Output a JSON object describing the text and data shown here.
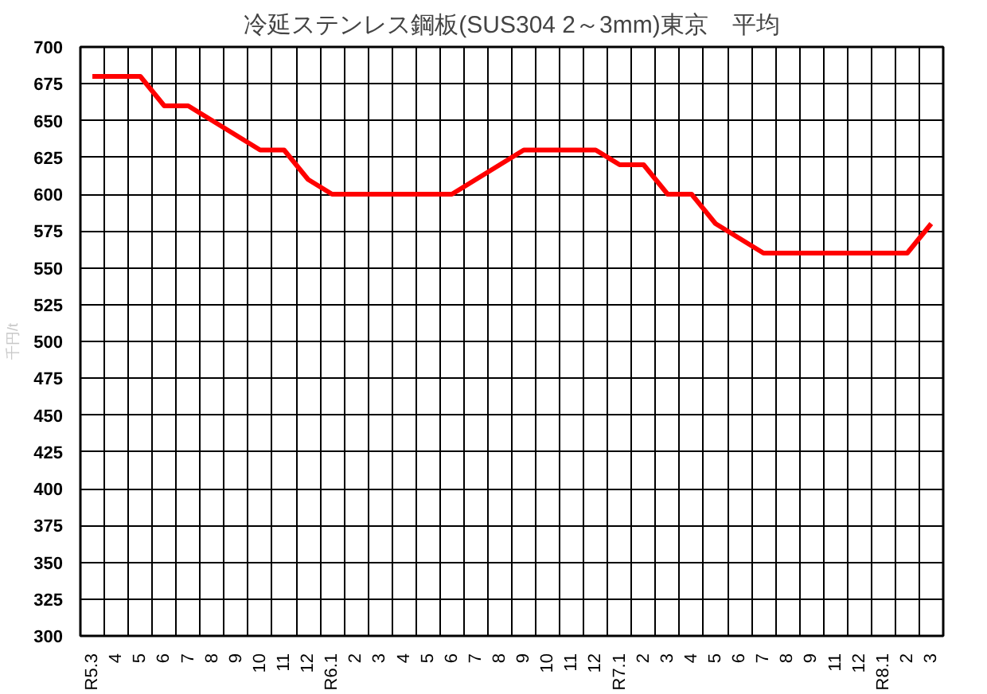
{
  "chart_data": {
    "type": "line",
    "title": "冷延ステンレス鋼板(SUS304 2～3mm)東京　平均",
    "ylabel": "千円/t",
    "categories": [
      "R5.3",
      "4",
      "5",
      "6",
      "7",
      "8",
      "9",
      "10",
      "11",
      "12",
      "R6.1",
      "2",
      "3",
      "4",
      "5",
      "6",
      "7",
      "8",
      "9",
      "10",
      "11",
      "12",
      "R7.1",
      "2",
      "3",
      "4",
      "5",
      "6",
      "7",
      "8",
      "9",
      "11",
      "12",
      "R8.1",
      "2",
      "3"
    ],
    "series": [
      {
        "color": "#ff0000",
        "values": [
          680,
          680,
          680,
          660,
          660,
          650,
          640,
          630,
          630,
          610,
          600,
          600,
          600,
          600,
          600,
          600,
          610,
          620,
          630,
          630,
          630,
          630,
          620,
          620,
          600,
          600,
          580,
          570,
          560,
          560,
          560,
          560,
          560,
          560,
          560,
          580
        ]
      }
    ],
    "ylim": [
      300,
      700
    ],
    "yticks": [
      300,
      325,
      350,
      375,
      400,
      425,
      450,
      475,
      500,
      525,
      550,
      575,
      600,
      625,
      650,
      675,
      700
    ],
    "grid": true,
    "marker": "none",
    "line_style": "solid"
  }
}
